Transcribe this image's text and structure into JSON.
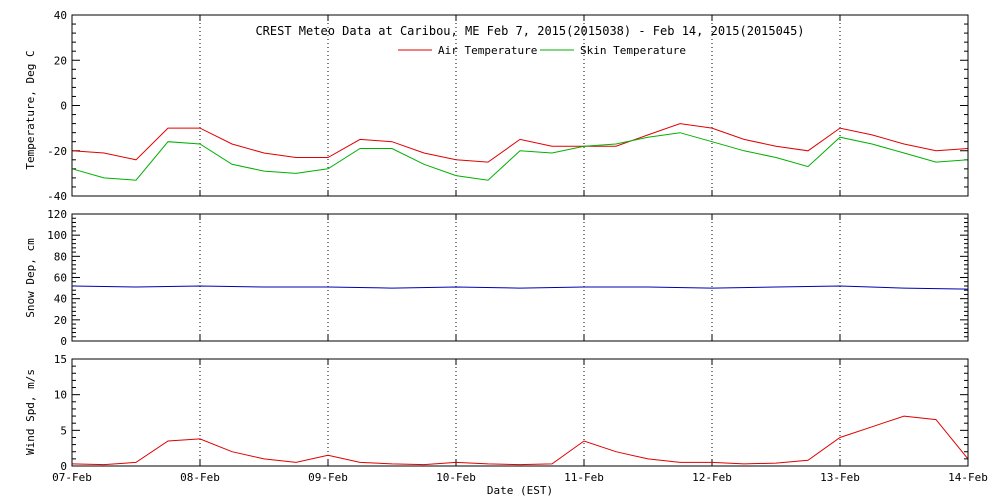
{
  "chart_data": [
    {
      "type": "line",
      "title": "CREST Meteo Data at Caribou, ME   Feb  7, 2015(2015038) - Feb 14, 2015(2015045)",
      "ylabel": "Temperature, Deg C",
      "ylim": [
        -40,
        40
      ],
      "yticks": [
        -40,
        -20,
        0,
        20,
        40
      ],
      "legend_position": "top-center",
      "x": [
        0,
        0.25,
        0.5,
        0.75,
        1,
        1.25,
        1.5,
        1.75,
        2,
        2.25,
        2.5,
        2.75,
        3,
        3.25,
        3.5,
        3.75,
        4,
        4.25,
        4.5,
        4.75,
        5,
        5.25,
        5.5,
        5.75,
        6,
        6.25,
        6.5,
        6.75,
        7
      ],
      "series": [
        {
          "name": "Air Temperature",
          "color": "#e00000",
          "values": [
            -20,
            -21,
            -24,
            -10,
            -10,
            -17,
            -21,
            -23,
            -23,
            -15,
            -16,
            -21,
            -24,
            -25,
            -15,
            -18,
            -18,
            -18,
            -13,
            -8,
            -10,
            -15,
            -18,
            -20,
            -10,
            -13,
            -17,
            -20,
            -19
          ]
        },
        {
          "name": "Skin Temperature",
          "color": "#00b000",
          "values": [
            -28,
            -32,
            -33,
            -16,
            -17,
            -26,
            -29,
            -30,
            -28,
            -19,
            -19,
            -26,
            -31,
            -33,
            -20,
            -21,
            -18,
            -17,
            -14,
            -12,
            -16,
            -20,
            -23,
            -27,
            -14,
            -17,
            -21,
            -25,
            -24
          ]
        }
      ]
    },
    {
      "type": "line",
      "ylabel": "Snow Dep, cm",
      "ylim": [
        0,
        120
      ],
      "yticks": [
        0,
        20,
        40,
        60,
        80,
        100,
        120
      ],
      "x": [
        0,
        0.5,
        1,
        1.5,
        2,
        2.5,
        3,
        3.5,
        4,
        4.5,
        5,
        5.5,
        6,
        6.5,
        7
      ],
      "series": [
        {
          "color": "#0000b0",
          "values": [
            52,
            51,
            52,
            51,
            51,
            50,
            51,
            50,
            51,
            51,
            50,
            51,
            52,
            50,
            49
          ]
        }
      ]
    },
    {
      "type": "line",
      "ylabel": "Wind Spd, m/s",
      "xlabel": "Date (EST)",
      "ylim": [
        0,
        15
      ],
      "yticks": [
        0,
        5,
        10,
        15
      ],
      "x_categories": [
        "07-Feb",
        "08-Feb",
        "09-Feb",
        "10-Feb",
        "11-Feb",
        "12-Feb",
        "13-Feb",
        "14-Feb"
      ],
      "x": [
        0,
        0.25,
        0.5,
        0.75,
        1,
        1.25,
        1.5,
        1.75,
        2,
        2.25,
        2.5,
        2.75,
        3,
        3.25,
        3.5,
        3.75,
        4,
        4.25,
        4.5,
        4.75,
        5,
        5.25,
        5.5,
        5.75,
        6,
        6.25,
        6.5,
        6.75,
        7
      ],
      "series": [
        {
          "color": "#e00000",
          "values": [
            0.3,
            0.2,
            0.5,
            3.5,
            3.8,
            2,
            1,
            0.5,
            1.5,
            0.5,
            0.3,
            0.2,
            0.5,
            0.3,
            0.2,
            0.3,
            3.5,
            2,
            1,
            0.5,
            0.5,
            0.3,
            0.4,
            0.8,
            4,
            5.5,
            7,
            6.5,
            1
          ]
        }
      ]
    }
  ]
}
